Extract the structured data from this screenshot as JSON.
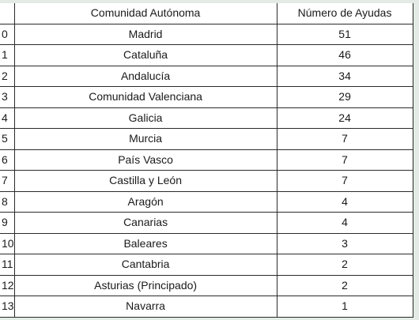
{
  "table": {
    "headers": {
      "index": "",
      "community": "Comunidad Autónoma",
      "count": "Número de Ayudas"
    },
    "rows": [
      {
        "index": "0",
        "community": "Madrid",
        "count": "51"
      },
      {
        "index": "1",
        "community": "Cataluña",
        "count": "46"
      },
      {
        "index": "2",
        "community": "Andalucía",
        "count": "34"
      },
      {
        "index": "3",
        "community": "Comunidad Valenciana",
        "count": "29"
      },
      {
        "index": "4",
        "community": "Galicia",
        "count": "24"
      },
      {
        "index": "5",
        "community": "Murcia",
        "count": "7"
      },
      {
        "index": "6",
        "community": "País Vasco",
        "count": "7"
      },
      {
        "index": "7",
        "community": "Castilla y León",
        "count": "7"
      },
      {
        "index": "8",
        "community": "Aragón",
        "count": "4"
      },
      {
        "index": "9",
        "community": "Canarias",
        "count": "4"
      },
      {
        "index": "10",
        "community": "Baleares",
        "count": "3"
      },
      {
        "index": "11",
        "community": "Cantabria",
        "count": "2"
      },
      {
        "index": "12",
        "community": "Asturias (Principado)",
        "count": "2"
      },
      {
        "index": "13",
        "community": "Navarra",
        "count": "1"
      }
    ]
  },
  "colors": {
    "page_background": "#e4ebe6",
    "table_background": "#ffffff",
    "border": "#2a2a2a",
    "text": "#1a1a1a"
  }
}
